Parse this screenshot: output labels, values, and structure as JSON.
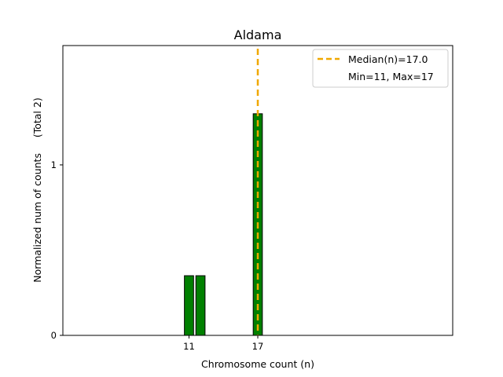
{
  "chart_data": {
    "type": "bar",
    "title": "Aldama",
    "xlabel": "Chromosome count (n)",
    "ylabel": "Normalized num of counts     (Total 2)",
    "xlim": [
      0,
      34
    ],
    "ylim": [
      0,
      1.7
    ],
    "x_ticks": [
      11,
      17
    ],
    "y_ticks": [
      {
        "value": 0,
        "label": "0"
      },
      {
        "value": 1,
        "label": "1"
      }
    ],
    "bars": [
      {
        "x": 11,
        "height": 0.35
      },
      {
        "x": 12,
        "height": 0.35
      },
      {
        "x": 17,
        "height": 1.3
      }
    ],
    "bar_color": "#008000",
    "median": {
      "value": 17.0,
      "label": "Median(n)=17.0",
      "color": "#f0a800"
    },
    "legend": {
      "placement": "top-right",
      "entries": [
        "Median(n)=17.0",
        "Min=11, Max=17"
      ]
    },
    "grid": false
  }
}
